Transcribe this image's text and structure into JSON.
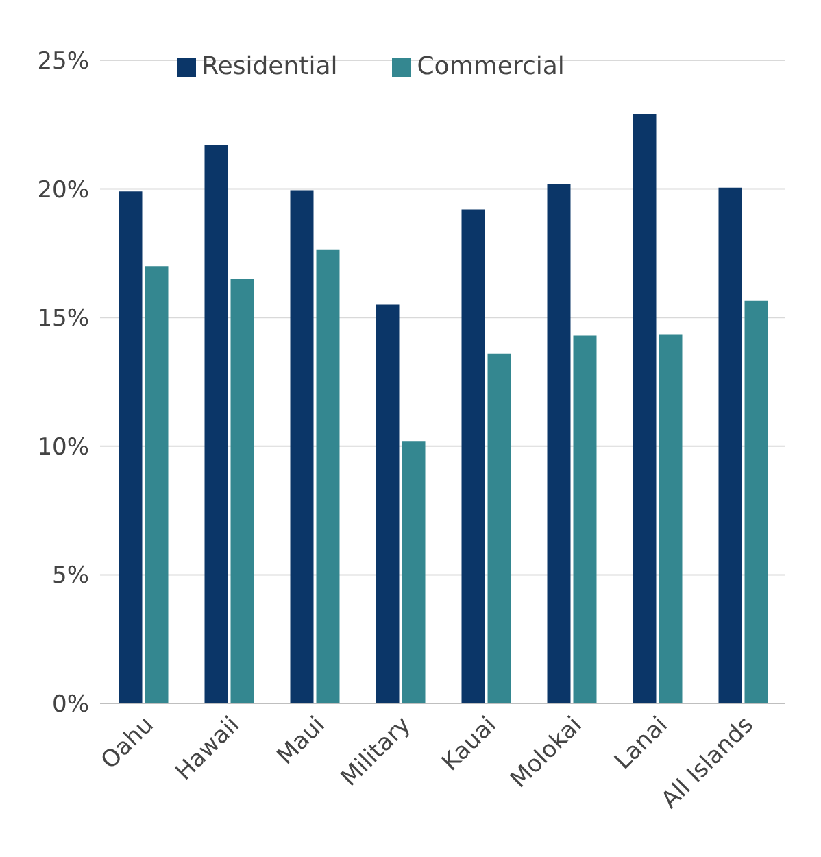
{
  "chart_data": {
    "type": "bar",
    "categories": [
      "Oahu",
      "Hawaii",
      "Maui",
      "Military",
      "Kauai",
      "Molokai",
      "Lanai",
      "All Islands"
    ],
    "series": [
      {
        "name": "Residential",
        "color": "#0b3668",
        "values": [
          19.9,
          21.7,
          19.95,
          15.5,
          19.2,
          20.2,
          22.9,
          20.05
        ]
      },
      {
        "name": "Commercial",
        "color": "#348790",
        "values": [
          17.0,
          16.5,
          17.65,
          10.2,
          13.6,
          14.3,
          14.35,
          15.65
        ]
      }
    ],
    "ylim": [
      0,
      25
    ],
    "yticks": [
      {
        "value": 0,
        "label": "0%"
      },
      {
        "value": 5,
        "label": "5%"
      },
      {
        "value": 10,
        "label": "10%"
      },
      {
        "value": 15,
        "label": "15%"
      },
      {
        "value": 20,
        "label": "20%"
      },
      {
        "value": 25,
        "label": "25%"
      }
    ],
    "grid": "y",
    "legend": "top"
  }
}
